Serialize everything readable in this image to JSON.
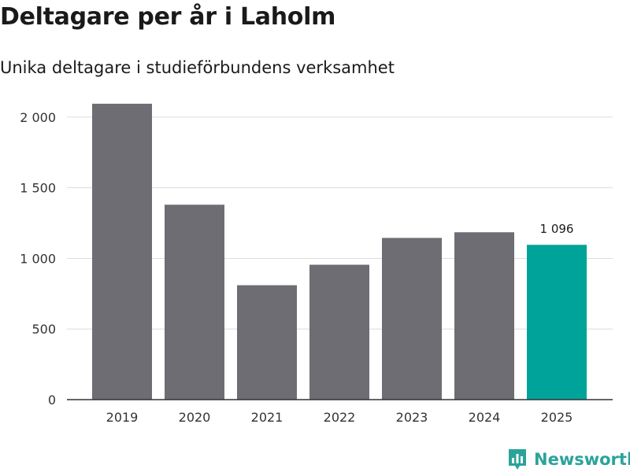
{
  "title": "Deltagare per år i Laholm",
  "subtitle": "Unika deltagare i studieförbundens verksamhet",
  "brand": {
    "name": "Newsworthy",
    "color": "#2ba39a"
  },
  "colors": {
    "bar": "#6e6d73",
    "highlight": "#00a39a",
    "grid": "#dcdcdc",
    "axis": "#333333"
  },
  "chart_data": {
    "type": "bar",
    "title": "Deltagare per år i Laholm",
    "subtitle": "Unika deltagare i studieförbundens verksamhet",
    "xlabel": "",
    "ylabel": "",
    "categories": [
      "2019",
      "2020",
      "2021",
      "2022",
      "2023",
      "2024",
      "2025"
    ],
    "values": [
      2095,
      1380,
      810,
      955,
      1145,
      1185,
      1096
    ],
    "ylim": [
      0,
      2200
    ],
    "yticks": [
      0,
      500,
      1000,
      1500,
      2000
    ],
    "ytick_labels": [
      "0",
      "500",
      "1 000",
      "1 500",
      "2 000"
    ],
    "highlight_category": "2025",
    "data_labels": [
      {
        "category": "2025",
        "text": "1 096"
      }
    ],
    "grid": true,
    "legend": false
  }
}
